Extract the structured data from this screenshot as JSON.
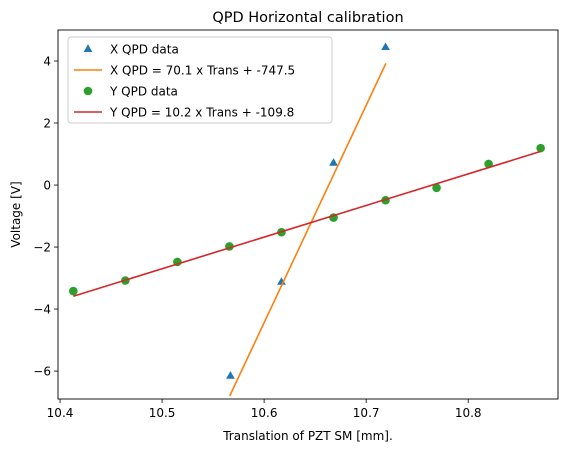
{
  "chart_data": {
    "type": "scatter",
    "title": "QPD Horizontal calibration",
    "xlabel": "Translation of PZT SM [mm].",
    "ylabel": "Voltage [V]",
    "xlim": [
      10.398,
      10.888
    ],
    "ylim": [
      -6.9,
      5.0
    ],
    "xticks": [
      10.4,
      10.5,
      10.6,
      10.7,
      10.8
    ],
    "yticks": [
      -6,
      -4,
      -2,
      0,
      2,
      4
    ],
    "xtick_labels": [
      "10.4",
      "10.5",
      "10.6",
      "10.7",
      "10.8"
    ],
    "ytick_labels": [
      "−6",
      "−4",
      "−2",
      "0",
      "2",
      "4"
    ],
    "grid": false,
    "legend_position": "top-left",
    "series": [
      {
        "name": "X QPD data",
        "kind": "scatter",
        "marker": "triangle",
        "color": "#1f77b4",
        "x": [
          10.567,
          10.617,
          10.668,
          10.719
        ],
        "y": [
          -6.15,
          -3.12,
          0.72,
          4.45
        ]
      },
      {
        "name": "X QPD = 70.1 x Trans + -747.5",
        "kind": "line",
        "color": "#ff7f0e",
        "slope": 70.1,
        "intercept": -747.5,
        "x": [
          10.5663,
          10.7193
        ]
      },
      {
        "name": "Y QPD data",
        "kind": "scatter",
        "marker": "circle",
        "color": "#2ca02c",
        "x": [
          10.413,
          10.464,
          10.515,
          10.566,
          10.617,
          10.668,
          10.719,
          10.769,
          10.82,
          10.871
        ],
        "y": [
          -3.42,
          -3.08,
          -2.48,
          -1.98,
          -1.52,
          -1.05,
          -0.49,
          -0.09,
          0.68,
          1.19
        ]
      },
      {
        "name": "Y QPD = 10.2 x Trans + -109.8",
        "kind": "line",
        "color": "#d62728",
        "slope": 10.2,
        "intercept": -109.8,
        "x": [
          10.413,
          10.871
        ]
      }
    ]
  }
}
